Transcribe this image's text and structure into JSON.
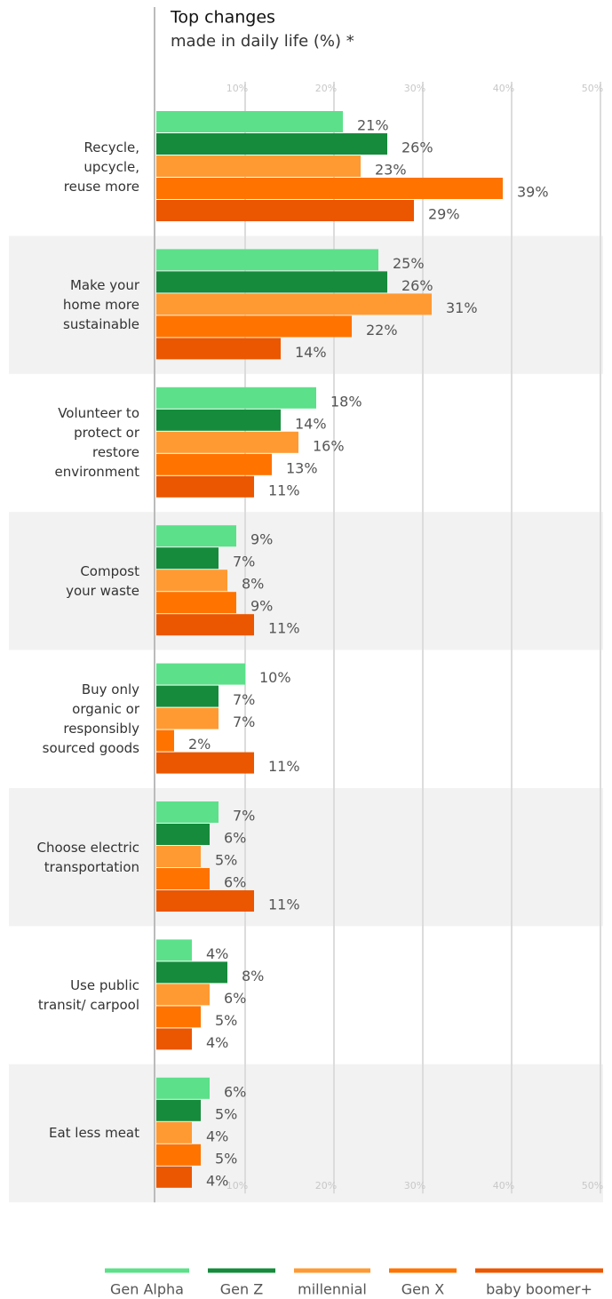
{
  "chart_data": {
    "type": "bar",
    "orientation": "horizontal",
    "title": "Top changes",
    "subtitle": "made in daily life (%) *",
    "categories": [
      "Recycle,\nupcycle,\nreuse more",
      "Make your\nhome more\nsustainable",
      "Volunteer to\nprotect or\nrestore\nenvironment",
      "Compost\nyour waste",
      "Buy only\norganic or\nresponsibly\nsourced goods",
      "Choose electric\ntransportation",
      "Use public\ntransit/ carpool",
      "Eat less meat"
    ],
    "series": [
      {
        "name": "Gen Alpha",
        "color": "#5ce08a",
        "values": [
          21,
          25,
          18,
          9,
          10,
          7,
          4,
          6
        ],
        "value_labels": [
          "21%",
          "25%",
          "18%",
          "9%",
          "10%",
          "7%",
          "4%",
          "6%"
        ]
      },
      {
        "name": "Gen Z",
        "color": "#168b3c",
        "values": [
          26,
          26,
          14,
          7,
          7,
          6,
          8,
          5
        ],
        "value_labels": [
          "26%",
          "26%",
          "14%",
          "7%",
          "7%",
          "6%",
          "8%",
          "5%"
        ]
      },
      {
        "name": "millennial",
        "color": "#ff9a33",
        "values": [
          23,
          31,
          16,
          8,
          7,
          5,
          6,
          4
        ],
        "value_labels": [
          "23%",
          "31%",
          "16%",
          "8%",
          "7%",
          "5%",
          "6%",
          "4%"
        ]
      },
      {
        "name": "Gen X",
        "color": "#ff7300",
        "values": [
          39,
          22,
          13,
          9,
          2,
          6,
          5,
          5
        ],
        "value_labels": [
          "39%",
          "22%",
          "13%",
          "9%",
          "2%",
          "6%",
          "5%",
          "5%"
        ]
      },
      {
        "name": "baby boomer+",
        "color": "#eb5600",
        "values": [
          29,
          14,
          11,
          11,
          11,
          11,
          4,
          4
        ],
        "value_labels": [
          "29%",
          "14%",
          "11%",
          "11%",
          "11%",
          "11%",
          "4%",
          "4%"
        ]
      }
    ],
    "xlim": [
      0,
      50
    ],
    "xticks": [
      {
        "value": 10,
        "label": "10%"
      },
      {
        "value": 20,
        "label": "20%"
      },
      {
        "value": 30,
        "label": "30%"
      },
      {
        "value": 40,
        "label": "40%"
      },
      {
        "value": 50,
        "label": "50%"
      }
    ],
    "grid": true,
    "legend": "bottom"
  }
}
